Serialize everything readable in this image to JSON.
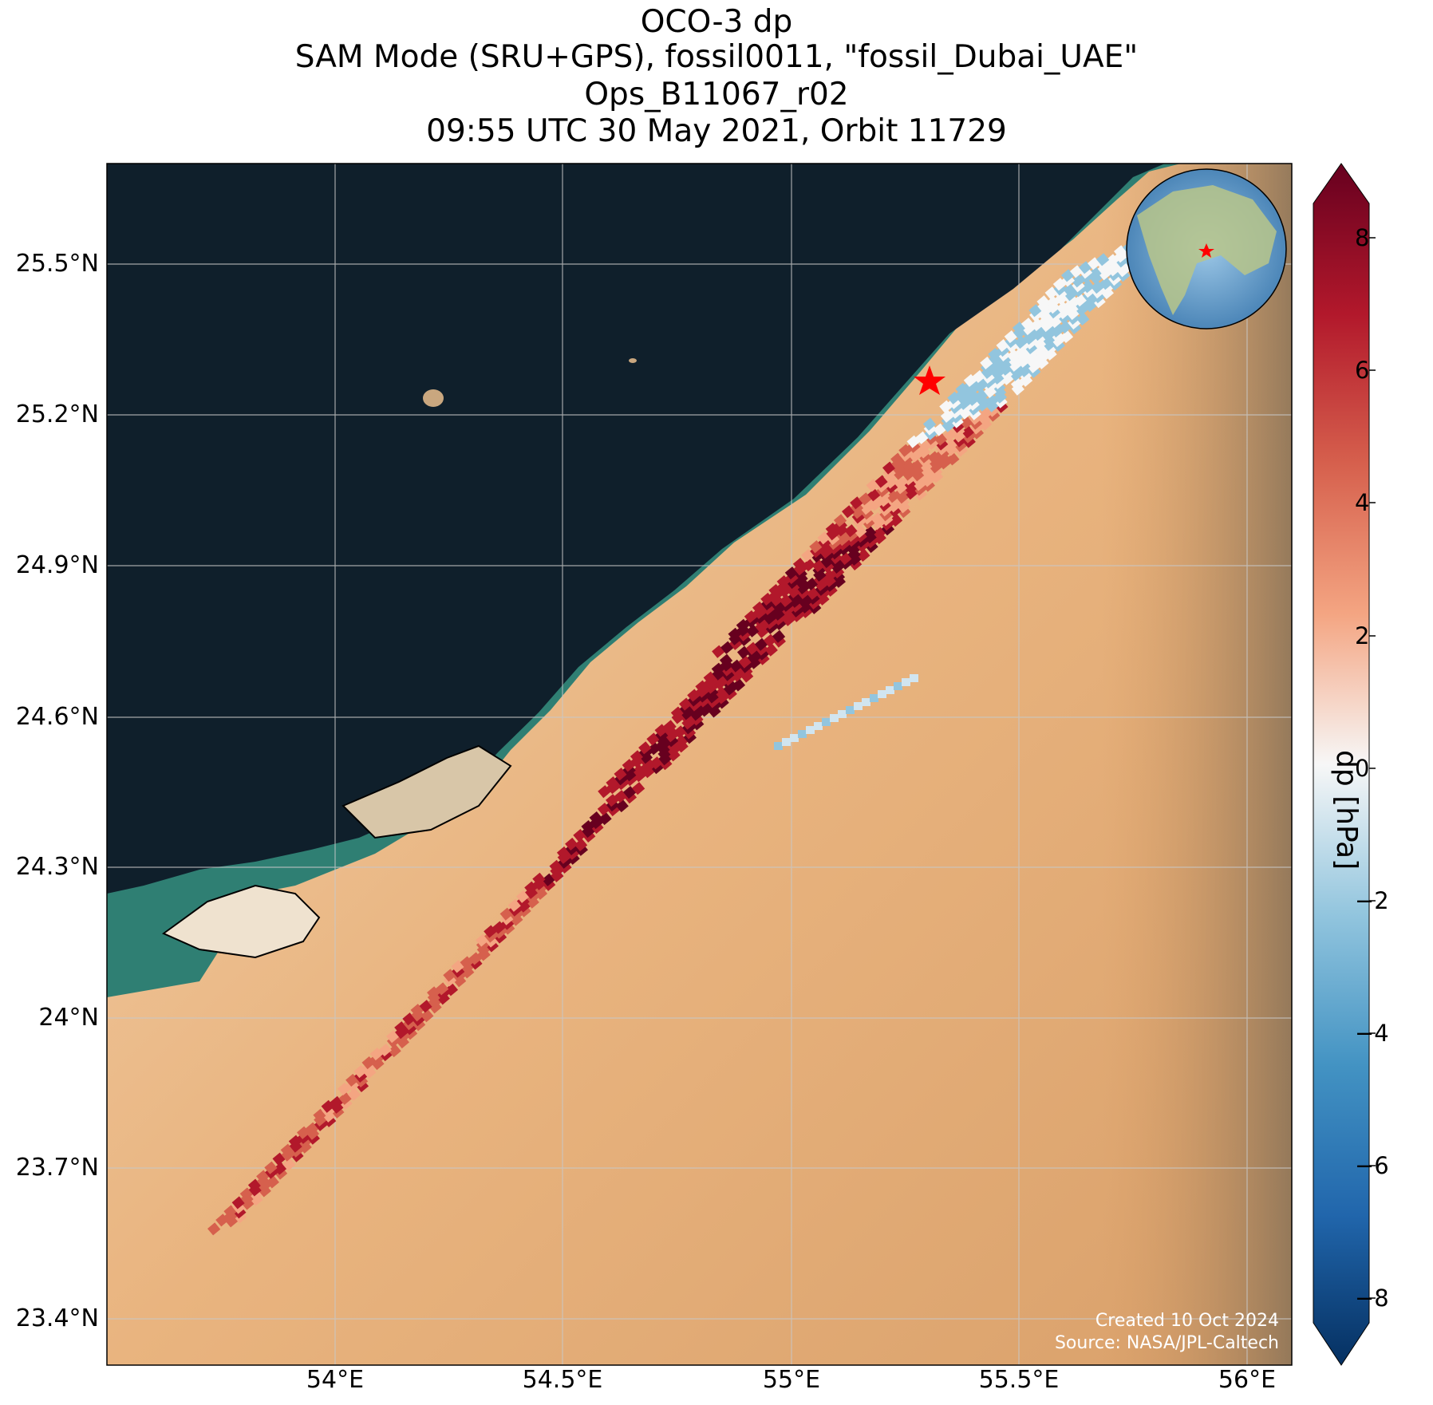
{
  "title": {
    "line1": "OCO-3 dp",
    "line2": "SAM Mode (SRU+GPS), fossil0011, \"fossil_Dubai_UAE\"",
    "line3": "Ops_B11067_r02",
    "line4": "09:55 UTC 30 May 2021, Orbit 11729"
  },
  "map": {
    "extent": {
      "lon_min": 53.5,
      "lon_max": 56.1,
      "lat_min": 23.3,
      "lat_max": 25.7
    },
    "lat_ticks": [
      {
        "value": 25.5,
        "label": "25.5°N"
      },
      {
        "value": 25.2,
        "label": "25.2°N"
      },
      {
        "value": 24.9,
        "label": "24.9°N"
      },
      {
        "value": 24.6,
        "label": "24.6°N"
      },
      {
        "value": 24.3,
        "label": "24.3°N"
      },
      {
        "value": 24.0,
        "label": "24°N"
      },
      {
        "value": 23.7,
        "label": "23.7°N"
      },
      {
        "value": 23.4,
        "label": "23.4°N"
      }
    ],
    "lon_ticks": [
      {
        "value": 54.0,
        "label": "54°E"
      },
      {
        "value": 54.5,
        "label": "54.5°E"
      },
      {
        "value": 55.0,
        "label": "55°E"
      },
      {
        "value": 55.5,
        "label": "55.5°E"
      },
      {
        "value": 56.0,
        "label": "56°E"
      }
    ],
    "target": {
      "name": "fossil_Dubai_UAE",
      "lon": 55.3,
      "lat": 25.27,
      "marker_color": "#ff0000"
    },
    "colors": {
      "sea": "#0f1f2b",
      "desert": "#e8b27a",
      "coast": "#1f6a5a",
      "grid": "#c8c8c8"
    }
  },
  "colorbar": {
    "label": "dp [hPa]",
    "vmin": -8,
    "vmax": 8,
    "ticks": [
      "8",
      "6",
      "4",
      "2",
      "0",
      "−2",
      "−4",
      "−6",
      "−8"
    ],
    "colormap": "RdBu_r"
  },
  "credits": {
    "created": "Created 10 Oct 2024",
    "source": "Source: NASA/JPL-Caltech"
  }
}
